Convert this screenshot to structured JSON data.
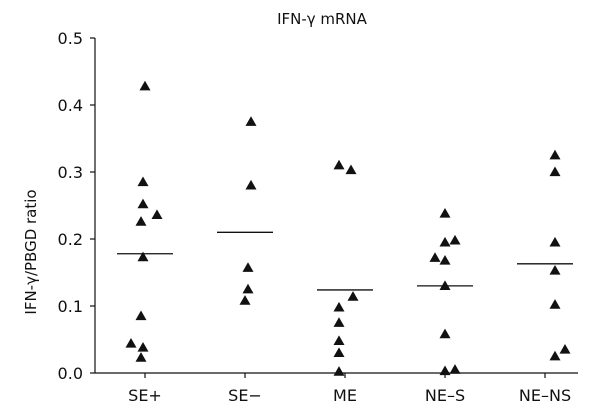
{
  "chart_data": {
    "type": "scatter",
    "title": "IFN-γ mRNA",
    "xlabel": "",
    "ylabel": "IFN-γ/PBGD ratio",
    "ylim": [
      0,
      0.5
    ],
    "yticks": [
      "0.0",
      "0.1",
      "0.2",
      "0.3",
      "0.4",
      "0.5"
    ],
    "categories": [
      "SE+",
      "SE−",
      "ME",
      "NE–S",
      "NE–NS"
    ],
    "marker": "triangle",
    "color": "#111111",
    "grid": false,
    "groups": [
      {
        "category": "SE+",
        "points": [
          {
            "offset": 0,
            "y": 0.428
          },
          {
            "offset": -0.02,
            "y": 0.285
          },
          {
            "offset": -0.02,
            "y": 0.252
          },
          {
            "offset": 0.12,
            "y": 0.236
          },
          {
            "offset": -0.04,
            "y": 0.226
          },
          {
            "offset": -0.02,
            "y": 0.173
          },
          {
            "offset": -0.04,
            "y": 0.085
          },
          {
            "offset": -0.14,
            "y": 0.044
          },
          {
            "offset": -0.02,
            "y": 0.038
          },
          {
            "offset": -0.04,
            "y": 0.023
          }
        ],
        "median": 0.178
      },
      {
        "category": "SE−",
        "points": [
          {
            "offset": 0.06,
            "y": 0.375
          },
          {
            "offset": 0.06,
            "y": 0.28
          },
          {
            "offset": 0.03,
            "y": 0.157
          },
          {
            "offset": 0.03,
            "y": 0.125
          },
          {
            "offset": 0,
            "y": 0.108
          }
        ],
        "median": 0.21
      },
      {
        "category": "ME",
        "points": [
          {
            "offset": -0.06,
            "y": 0.31
          },
          {
            "offset": 0.06,
            "y": 0.303
          },
          {
            "offset": 0.08,
            "y": 0.114
          },
          {
            "offset": -0.06,
            "y": 0.098
          },
          {
            "offset": -0.06,
            "y": 0.075
          },
          {
            "offset": -0.06,
            "y": 0.048
          },
          {
            "offset": -0.06,
            "y": 0.03
          },
          {
            "offset": -0.06,
            "y": 0.002
          }
        ],
        "median": 0.124
      },
      {
        "category": "NE–S",
        "points": [
          {
            "offset": 0,
            "y": 0.238
          },
          {
            "offset": 0.1,
            "y": 0.198
          },
          {
            "offset": 0,
            "y": 0.195
          },
          {
            "offset": -0.1,
            "y": 0.172
          },
          {
            "offset": 0,
            "y": 0.168
          },
          {
            "offset": 0,
            "y": 0.13
          },
          {
            "offset": 0,
            "y": 0.058
          },
          {
            "offset": 0,
            "y": 0.003
          },
          {
            "offset": 0.1,
            "y": 0.005
          }
        ],
        "median": 0.13
      },
      {
        "category": "NE–NS",
        "points": [
          {
            "offset": 0.1,
            "y": 0.325
          },
          {
            "offset": 0.1,
            "y": 0.3
          },
          {
            "offset": 0.1,
            "y": 0.195
          },
          {
            "offset": 0.1,
            "y": 0.153
          },
          {
            "offset": 0.1,
            "y": 0.102
          },
          {
            "offset": 0.2,
            "y": 0.035
          },
          {
            "offset": 0.1,
            "y": 0.025
          }
        ],
        "median": 0.163
      }
    ]
  }
}
